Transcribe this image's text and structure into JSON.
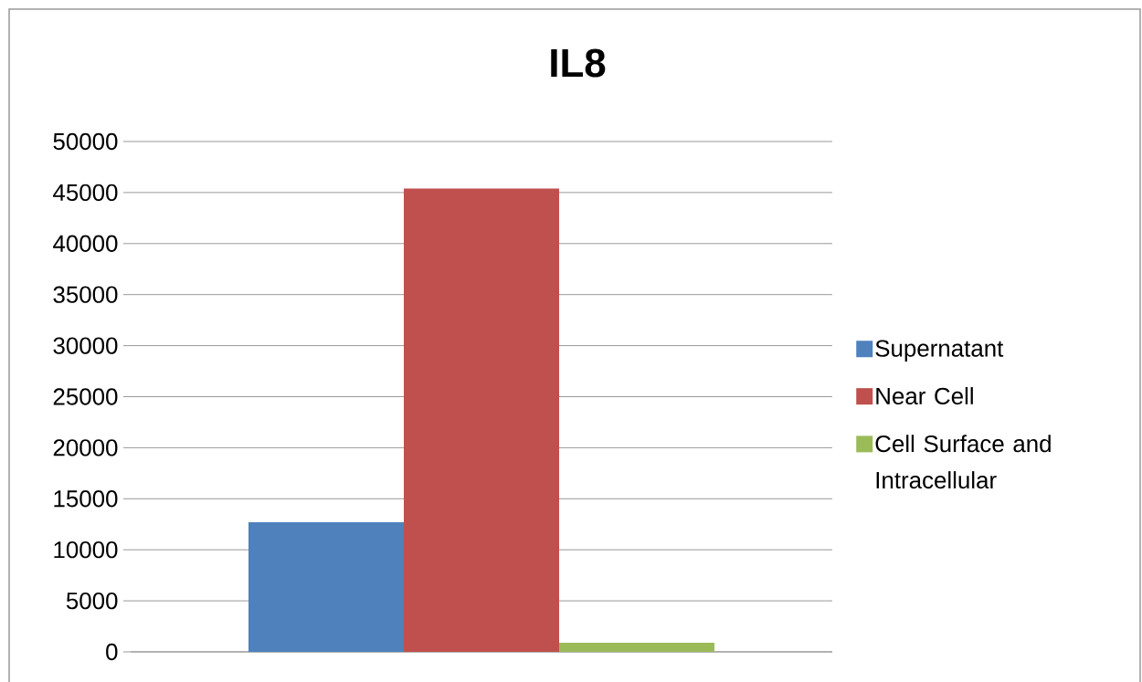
{
  "chart_data": {
    "type": "bar",
    "title": "IL8",
    "categories": [
      null
    ],
    "series": [
      {
        "name": "Supernatant",
        "color": "#4f81bd",
        "values": [
          12700
        ]
      },
      {
        "name": "Near Cell",
        "color": "#c0504d",
        "values": [
          45400
        ]
      },
      {
        "name": "Cell Surface and Intracellular",
        "color": "#9bbb59",
        "values": [
          900
        ]
      }
    ],
    "ylim": [
      0,
      50000
    ],
    "yticks": [
      0,
      5000,
      10000,
      15000,
      20000,
      25000,
      30000,
      35000,
      40000,
      45000,
      50000
    ],
    "grid": "y",
    "legend": "right",
    "tick_labels": "y"
  }
}
